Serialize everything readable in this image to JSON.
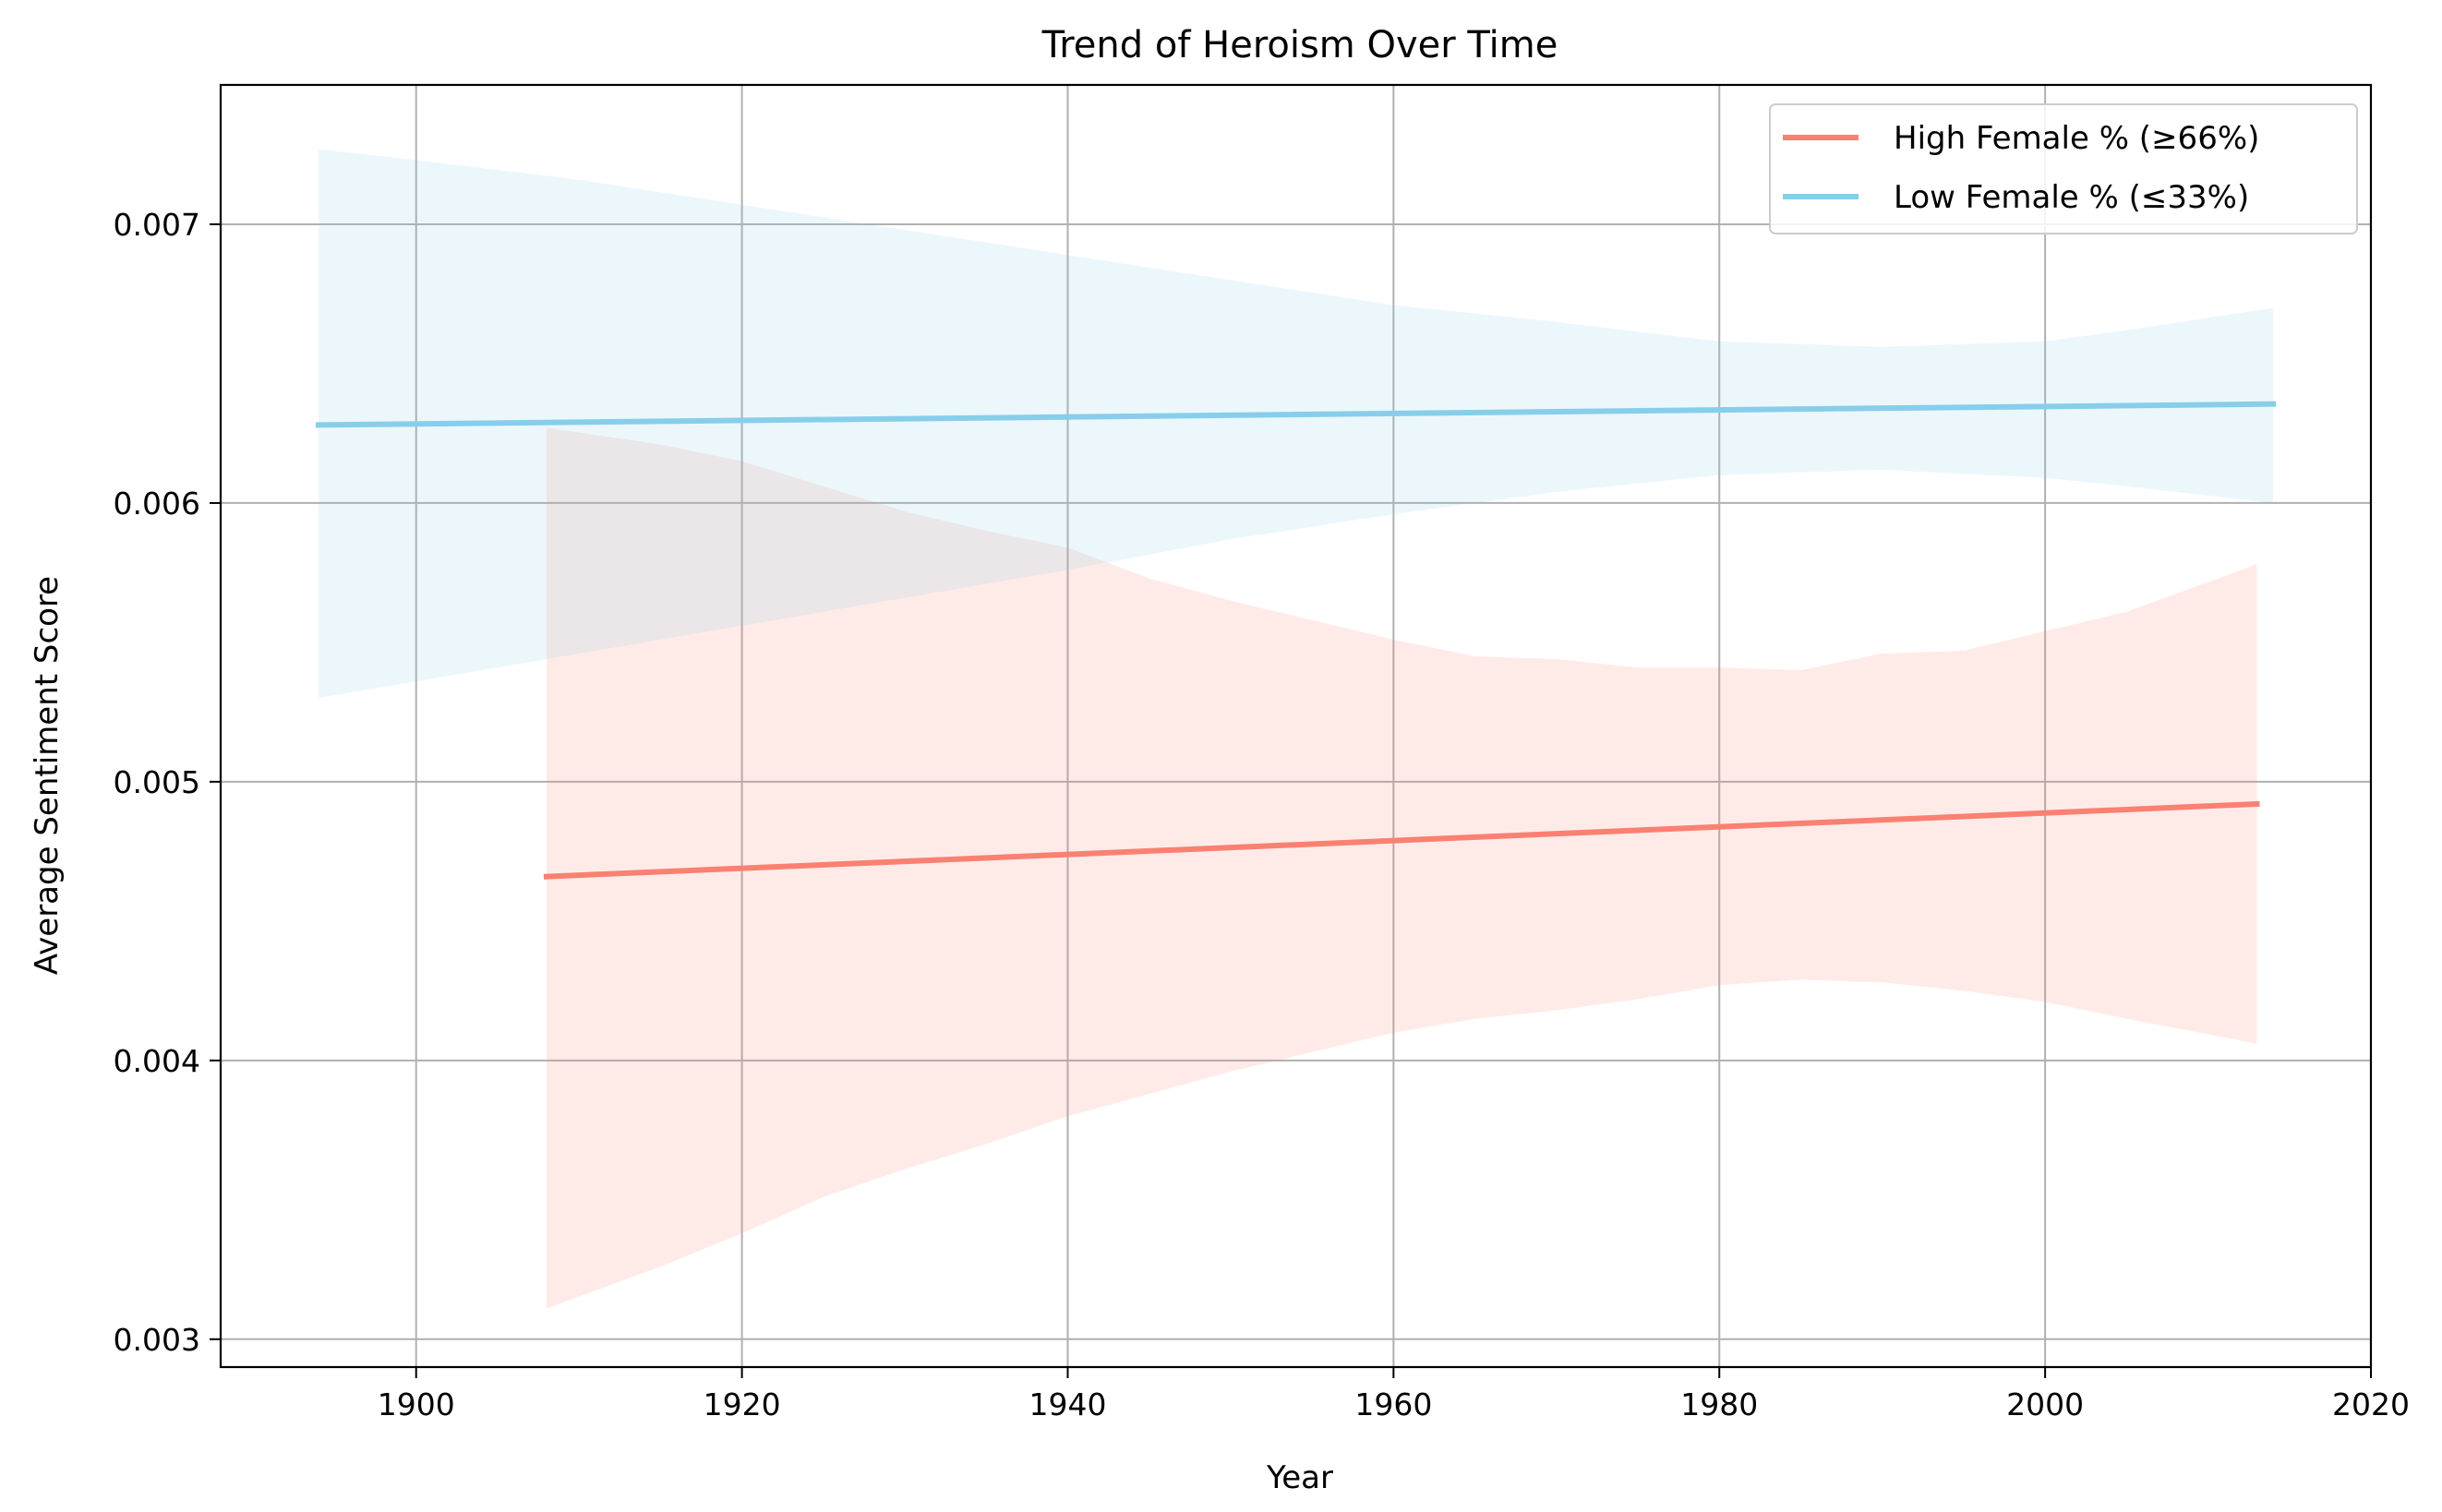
{
  "chart_data": {
    "type": "line",
    "title": "Trend of Heroism Over Time",
    "xlabel": "Year",
    "ylabel": "Average Sentiment Score",
    "xlim": [
      1888,
      2020
    ],
    "ylim": [
      0.0029,
      0.0075
    ],
    "x_ticks": [
      1900,
      1920,
      1940,
      1960,
      1980,
      2000,
      2020
    ],
    "y_ticks": [
      0.003,
      0.004,
      0.005,
      0.006,
      0.007
    ],
    "x_tick_labels": [
      "1900",
      "1920",
      "1940",
      "1960",
      "1980",
      "2000",
      "2020"
    ],
    "y_tick_labels": [
      "0.003",
      "0.004",
      "0.005",
      "0.006",
      "0.007"
    ],
    "grid": true,
    "legend_position": "top-right",
    "series": [
      {
        "name": "High Female % (≥66%)",
        "color": "#fa8072",
        "band_color": "#fde2df",
        "line": {
          "x": [
            1908,
            2013
          ],
          "y": [
            0.00466,
            0.00492
          ]
        },
        "band": {
          "x": [
            1908,
            1915,
            1920,
            1925,
            1930,
            1935,
            1940,
            1945,
            1950,
            1955,
            1960,
            1965,
            1970,
            1975,
            1980,
            1985,
            1990,
            1995,
            2000,
            2005,
            2013
          ],
          "upper": [
            0.00627,
            0.00621,
            0.00615,
            0.00606,
            0.00597,
            0.0059,
            0.00584,
            0.00573,
            0.00565,
            0.00558,
            0.00551,
            0.00545,
            0.00544,
            0.00541,
            0.00541,
            0.0054,
            0.00546,
            0.00547,
            0.00554,
            0.00561,
            0.00578
          ],
          "lower": [
            0.00311,
            0.00326,
            0.00338,
            0.00351,
            0.00361,
            0.0037,
            0.0038,
            0.00388,
            0.00396,
            0.00403,
            0.0041,
            0.00415,
            0.00418,
            0.00422,
            0.00427,
            0.00429,
            0.00428,
            0.00425,
            0.00421,
            0.00415,
            0.00406
          ]
        }
      },
      {
        "name": "Low Female % (≤33%)",
        "color": "#87ceeb",
        "band_color": "#e9f4fb",
        "line": {
          "x": [
            1894,
            2014
          ],
          "y": [
            0.00628,
            0.006355
          ]
        },
        "band": {
          "x": [
            1894,
            1900,
            1910,
            1920,
            1930,
            1940,
            1950,
            1960,
            1970,
            1980,
            1990,
            2000,
            2005,
            2014
          ],
          "upper": [
            0.00727,
            0.00723,
            0.00716,
            0.00707,
            0.00698,
            0.00689,
            0.0068,
            0.00671,
            0.00665,
            0.00658,
            0.00656,
            0.00658,
            0.00662,
            0.0067
          ],
          "lower": [
            0.0053,
            0.00536,
            0.00546,
            0.00556,
            0.00566,
            0.00576,
            0.00587,
            0.00596,
            0.00604,
            0.0061,
            0.00612,
            0.00609,
            0.00606,
            0.006
          ]
        }
      }
    ]
  }
}
